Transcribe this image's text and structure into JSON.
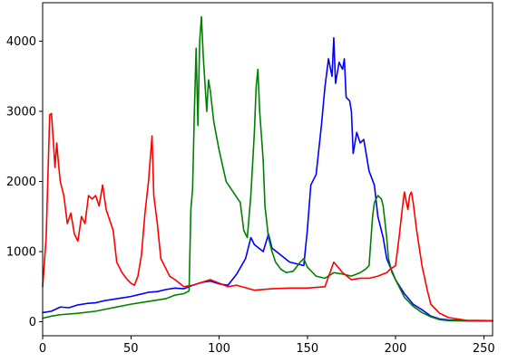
{
  "chart_data": {
    "type": "line",
    "title": "",
    "xlabel": "",
    "ylabel": "",
    "xlim": [
      0,
      255
    ],
    "ylim": [
      -200,
      4550
    ],
    "grid": false,
    "x_ticks": [
      0,
      50,
      100,
      150,
      200,
      250
    ],
    "x_tick_labels": [
      "0",
      "50",
      "100",
      "150",
      "200",
      "250"
    ],
    "y_ticks": [
      0,
      1000,
      2000,
      3000,
      4000
    ],
    "y_tick_labels": [
      "0",
      "1000",
      "2000",
      "3000",
      "4000"
    ],
    "series": [
      {
        "color": "#0000ff",
        "points": [
          [
            0,
            130
          ],
          [
            5,
            150
          ],
          [
            10,
            210
          ],
          [
            15,
            200
          ],
          [
            20,
            240
          ],
          [
            25,
            260
          ],
          [
            30,
            270
          ],
          [
            35,
            300
          ],
          [
            40,
            320
          ],
          [
            45,
            340
          ],
          [
            50,
            360
          ],
          [
            55,
            390
          ],
          [
            60,
            420
          ],
          [
            65,
            430
          ],
          [
            70,
            460
          ],
          [
            75,
            480
          ],
          [
            80,
            470
          ],
          [
            85,
            520
          ],
          [
            90,
            560
          ],
          [
            95,
            580
          ],
          [
            100,
            540
          ],
          [
            105,
            520
          ],
          [
            110,
            680
          ],
          [
            115,
            900
          ],
          [
            118,
            1200
          ],
          [
            120,
            1100
          ],
          [
            125,
            1000
          ],
          [
            128,
            1250
          ],
          [
            130,
            1050
          ],
          [
            135,
            950
          ],
          [
            140,
            850
          ],
          [
            145,
            820
          ],
          [
            148,
            800
          ],
          [
            150,
            1300
          ],
          [
            152,
            1950
          ],
          [
            155,
            2100
          ],
          [
            158,
            2800
          ],
          [
            160,
            3350
          ],
          [
            162,
            3750
          ],
          [
            164,
            3500
          ],
          [
            165,
            4050
          ],
          [
            166,
            3400
          ],
          [
            168,
            3700
          ],
          [
            170,
            3600
          ],
          [
            171,
            3750
          ],
          [
            172,
            3200
          ],
          [
            174,
            3150
          ],
          [
            175,
            3000
          ],
          [
            176,
            2400
          ],
          [
            178,
            2700
          ],
          [
            180,
            2550
          ],
          [
            182,
            2600
          ],
          [
            183,
            2450
          ],
          [
            185,
            2150
          ],
          [
            188,
            1950
          ],
          [
            190,
            1500
          ],
          [
            193,
            1200
          ],
          [
            195,
            900
          ],
          [
            200,
            600
          ],
          [
            205,
            400
          ],
          [
            210,
            250
          ],
          [
            215,
            170
          ],
          [
            220,
            80
          ],
          [
            225,
            40
          ],
          [
            230,
            25
          ],
          [
            240,
            15
          ],
          [
            255,
            10
          ]
        ]
      },
      {
        "color": "#008000",
        "points": [
          [
            0,
            50
          ],
          [
            5,
            80
          ],
          [
            10,
            100
          ],
          [
            20,
            120
          ],
          [
            30,
            150
          ],
          [
            40,
            200
          ],
          [
            50,
            250
          ],
          [
            60,
            290
          ],
          [
            70,
            330
          ],
          [
            75,
            380
          ],
          [
            80,
            400
          ],
          [
            83,
            440
          ],
          [
            84,
            1600
          ],
          [
            85,
            1900
          ],
          [
            86,
            3000
          ],
          [
            87,
            3900
          ],
          [
            88,
            2800
          ],
          [
            89,
            4000
          ],
          [
            90,
            4350
          ],
          [
            91,
            3800
          ],
          [
            92,
            3400
          ],
          [
            93,
            3000
          ],
          [
            94,
            3450
          ],
          [
            95,
            3300
          ],
          [
            97,
            2850
          ],
          [
            100,
            2450
          ],
          [
            104,
            2000
          ],
          [
            108,
            1850
          ],
          [
            112,
            1700
          ],
          [
            114,
            1300
          ],
          [
            116,
            1200
          ],
          [
            118,
            1800
          ],
          [
            120,
            2700
          ],
          [
            121,
            3350
          ],
          [
            122,
            3600
          ],
          [
            123,
            3000
          ],
          [
            125,
            2300
          ],
          [
            126,
            1650
          ],
          [
            128,
            1200
          ],
          [
            130,
            1000
          ],
          [
            132,
            850
          ],
          [
            135,
            750
          ],
          [
            138,
            700
          ],
          [
            142,
            720
          ],
          [
            146,
            850
          ],
          [
            148,
            900
          ],
          [
            150,
            780
          ],
          [
            155,
            650
          ],
          [
            160,
            620
          ],
          [
            165,
            700
          ],
          [
            170,
            680
          ],
          [
            175,
            650
          ],
          [
            180,
            700
          ],
          [
            183,
            750
          ],
          [
            185,
            800
          ],
          [
            187,
            1500
          ],
          [
            188,
            1700
          ],
          [
            190,
            1800
          ],
          [
            192,
            1750
          ],
          [
            193,
            1650
          ],
          [
            195,
            1200
          ],
          [
            196,
            900
          ],
          [
            198,
            700
          ],
          [
            200,
            600
          ],
          [
            205,
            350
          ],
          [
            210,
            220
          ],
          [
            215,
            130
          ],
          [
            220,
            70
          ],
          [
            225,
            30
          ],
          [
            230,
            15
          ],
          [
            240,
            10
          ],
          [
            255,
            10
          ]
        ]
      },
      {
        "color": "#ff0000",
        "points": [
          [
            0,
            500
          ],
          [
            2,
            1200
          ],
          [
            4,
            2950
          ],
          [
            5,
            2970
          ],
          [
            6,
            2600
          ],
          [
            7,
            2200
          ],
          [
            8,
            2550
          ],
          [
            9,
            2250
          ],
          [
            10,
            2000
          ],
          [
            12,
            1800
          ],
          [
            14,
            1400
          ],
          [
            16,
            1550
          ],
          [
            18,
            1250
          ],
          [
            20,
            1150
          ],
          [
            22,
            1500
          ],
          [
            24,
            1400
          ],
          [
            26,
            1800
          ],
          [
            28,
            1750
          ],
          [
            30,
            1800
          ],
          [
            32,
            1650
          ],
          [
            34,
            1950
          ],
          [
            36,
            1600
          ],
          [
            38,
            1450
          ],
          [
            40,
            1300
          ],
          [
            42,
            850
          ],
          [
            45,
            700
          ],
          [
            48,
            600
          ],
          [
            50,
            550
          ],
          [
            52,
            520
          ],
          [
            54,
            650
          ],
          [
            56,
            950
          ],
          [
            58,
            1550
          ],
          [
            60,
            2000
          ],
          [
            62,
            2650
          ],
          [
            63,
            1800
          ],
          [
            65,
            1400
          ],
          [
            67,
            900
          ],
          [
            70,
            750
          ],
          [
            72,
            650
          ],
          [
            75,
            600
          ],
          [
            80,
            500
          ],
          [
            85,
            520
          ],
          [
            90,
            560
          ],
          [
            95,
            600
          ],
          [
            100,
            550
          ],
          [
            105,
            500
          ],
          [
            110,
            520
          ],
          [
            120,
            450
          ],
          [
            130,
            470
          ],
          [
            140,
            480
          ],
          [
            150,
            480
          ],
          [
            160,
            500
          ],
          [
            165,
            850
          ],
          [
            170,
            700
          ],
          [
            175,
            600
          ],
          [
            180,
            620
          ],
          [
            185,
            620
          ],
          [
            190,
            650
          ],
          [
            195,
            700
          ],
          [
            197,
            750
          ],
          [
            200,
            800
          ],
          [
            202,
            1200
          ],
          [
            204,
            1650
          ],
          [
            205,
            1850
          ],
          [
            207,
            1600
          ],
          [
            208,
            1800
          ],
          [
            209,
            1850
          ],
          [
            210,
            1700
          ],
          [
            212,
            1300
          ],
          [
            215,
            800
          ],
          [
            218,
            450
          ],
          [
            220,
            250
          ],
          [
            225,
            120
          ],
          [
            230,
            60
          ],
          [
            240,
            20
          ],
          [
            255,
            15
          ]
        ]
      }
    ]
  }
}
